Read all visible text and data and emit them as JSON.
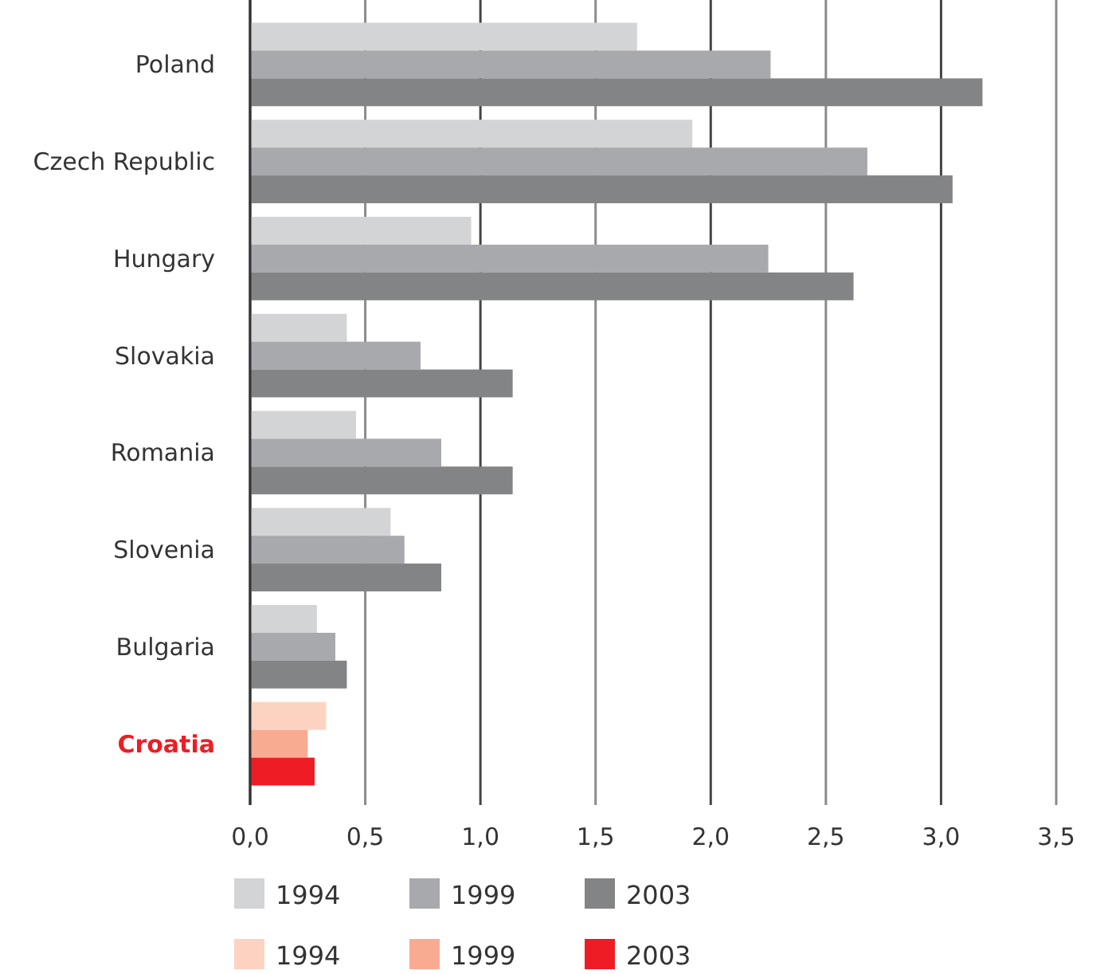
{
  "chart_data": {
    "type": "bar",
    "orientation": "horizontal",
    "categories": [
      "Poland",
      "Czech Republic",
      "Hungary",
      "Slovakia",
      "Romania",
      "Slovenia",
      "Bulgaria",
      "Croatia"
    ],
    "series": [
      {
        "name": "1994",
        "color": "#d3d4d6",
        "colors": [
          "#d3d4d6",
          "#d3d4d6",
          "#d3d4d6",
          "#d3d4d6",
          "#d3d4d6",
          "#d3d4d6",
          "#d3d4d6",
          "#fcd3c1"
        ],
        "values": [
          1.68,
          1.92,
          0.96,
          0.42,
          0.46,
          0.61,
          0.29,
          0.33
        ]
      },
      {
        "name": "1999",
        "color": "#a8a9ad",
        "colors": [
          "#a8a9ad",
          "#a8a9ad",
          "#a8a9ad",
          "#a8a9ad",
          "#a8a9ad",
          "#a8a9ad",
          "#a8a9ad",
          "#f9ab91"
        ],
        "values": [
          2.26,
          2.68,
          2.25,
          0.74,
          0.83,
          0.67,
          0.37,
          0.25
        ]
      },
      {
        "name": "2003",
        "color": "#838486",
        "colors": [
          "#838486",
          "#838486",
          "#838486",
          "#838486",
          "#838486",
          "#838486",
          "#838486",
          "#ee1c25"
        ],
        "values": [
          3.18,
          3.05,
          2.62,
          1.14,
          1.14,
          0.83,
          0.42,
          0.28
        ]
      }
    ],
    "xlim": [
      0,
      3.5
    ],
    "xticks": [
      {
        "value": 0,
        "label": "0,0"
      },
      {
        "value": 0.5,
        "label": "0,5"
      },
      {
        "value": 1,
        "label": "1,0"
      },
      {
        "value": 1.5,
        "label": "1,5"
      },
      {
        "value": 2,
        "label": "2,0"
      },
      {
        "value": 2.5,
        "label": "2,5"
      },
      {
        "value": 3,
        "label": "3,0"
      },
      {
        "value": 3.5,
        "label": "3,5"
      }
    ],
    "grid": "x",
    "legend": "bottom"
  }
}
